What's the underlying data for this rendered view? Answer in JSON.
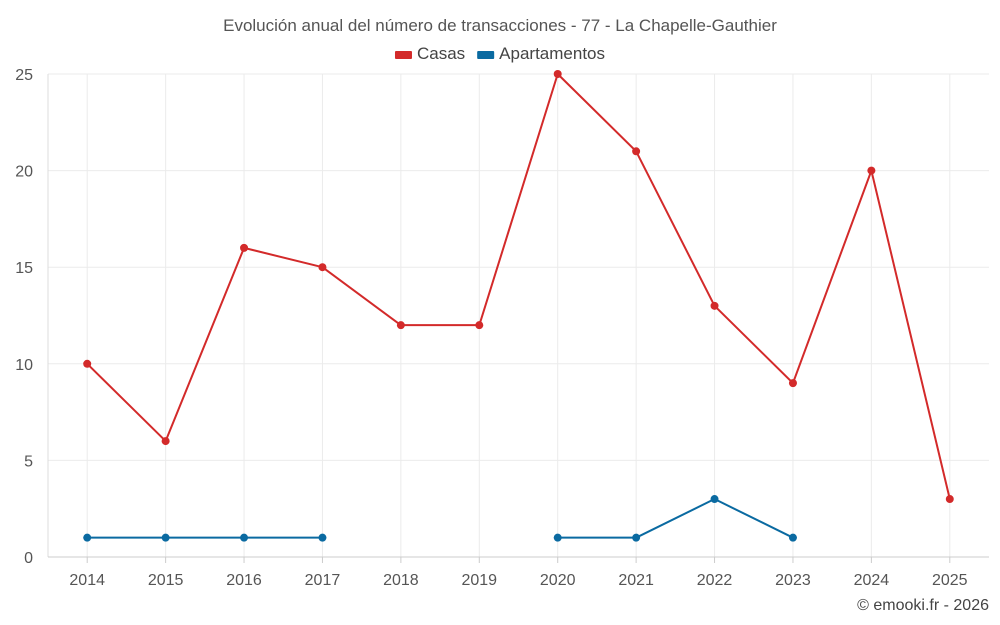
{
  "chart_data": {
    "type": "line",
    "title": "Evolución anual del número de transacciones - 77 - La Chapelle-Gauthier",
    "categories": [
      "2014",
      "2015",
      "2016",
      "2017",
      "2018",
      "2019",
      "2020",
      "2021",
      "2022",
      "2023",
      "2024",
      "2025"
    ],
    "series": [
      {
        "name": "Casas",
        "color": "#d32a2a",
        "values": [
          10,
          6,
          16,
          15,
          12,
          12,
          25,
          21,
          13,
          9,
          20,
          3
        ]
      },
      {
        "name": "Apartamentos",
        "color": "#0a6aa1",
        "values": [
          1,
          1,
          1,
          1,
          null,
          null,
          1,
          1,
          3,
          1,
          null,
          null
        ]
      }
    ],
    "yticks": [
      "0",
      "5",
      "10",
      "15",
      "20",
      "25"
    ],
    "ylim": [
      0,
      25
    ],
    "grid": true,
    "legend_position": "top-center",
    "xlabel": "",
    "ylabel": ""
  },
  "credit": "© emooki.fr - 2026"
}
